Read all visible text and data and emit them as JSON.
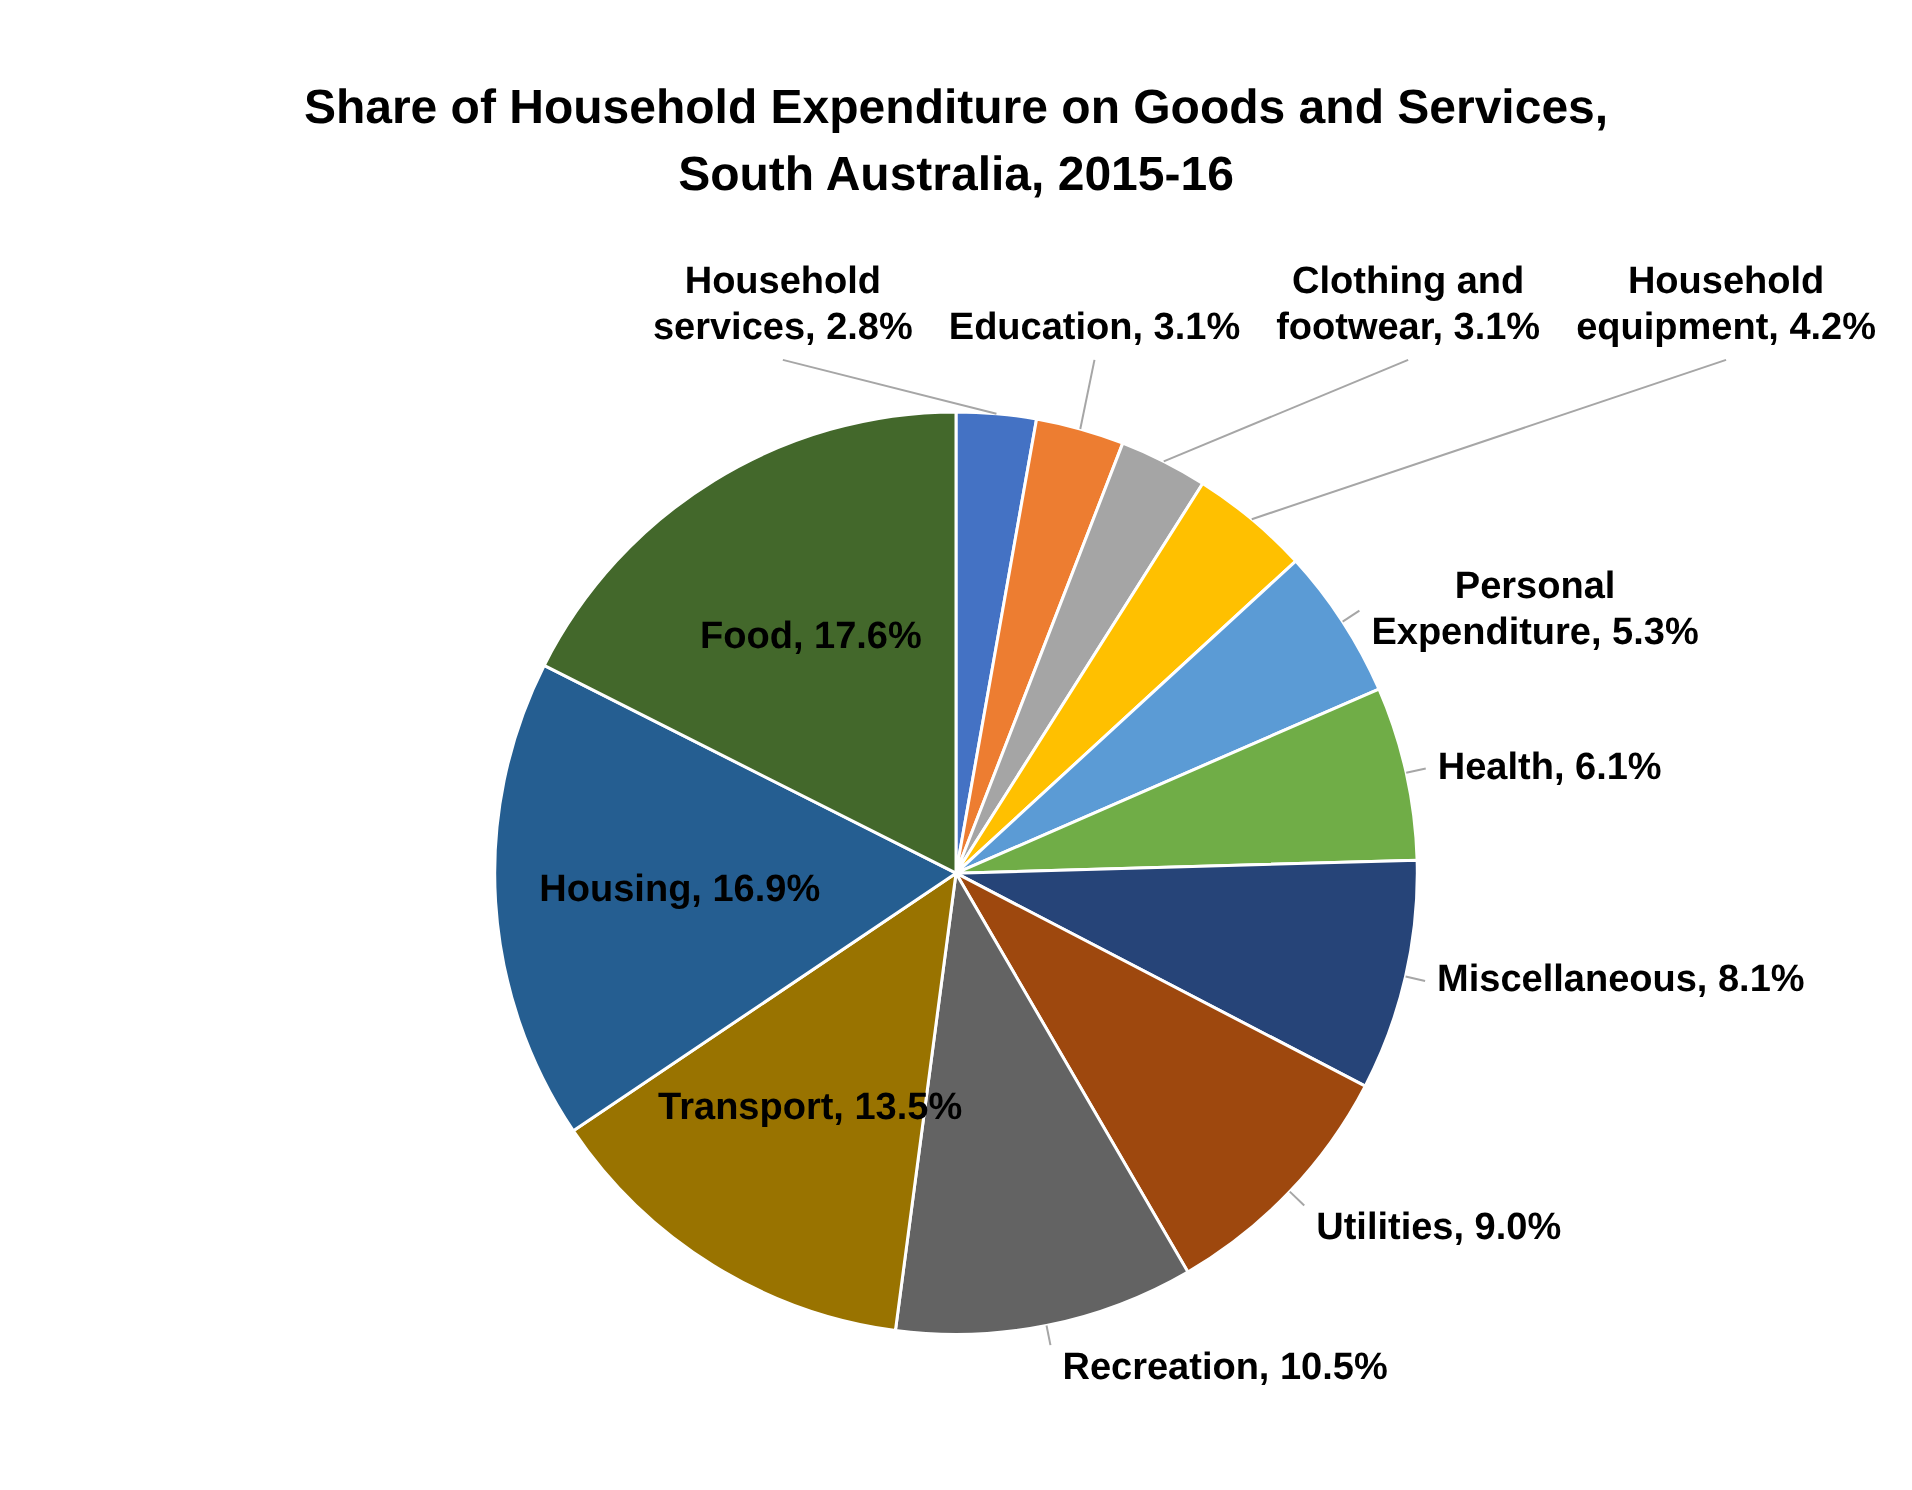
{
  "chart_data": {
    "type": "pie",
    "title": "Share of Household Expenditure on Goods and Services, South Australia, 2015-16",
    "categories": [
      "Household services",
      "Education",
      "Clothing and footwear",
      "Household equipment",
      "Personal Expenditure",
      "Health",
      "Miscellaneous",
      "Utilities",
      "Recreation",
      "Transport",
      "Housing",
      "Food"
    ],
    "values": [
      2.8,
      3.1,
      3.1,
      4.2,
      5.3,
      6.1,
      8.1,
      9.0,
      10.5,
      13.5,
      16.9,
      17.6
    ],
    "colors": [
      "#4472c4",
      "#ed7d31",
      "#a5a5a5",
      "#ffc000",
      "#5b9bd5",
      "#70ad47",
      "#264478",
      "#9e480e",
      "#636363",
      "#997300",
      "#255e91",
      "#43682b"
    ],
    "value_labels": [
      "2.8%",
      "3.1%",
      "3.1%",
      "4.2%",
      "5.3%",
      "6.1%",
      "8.1%",
      "9.0%",
      "10.5%",
      "13.5%",
      "16.9%",
      "17.6%"
    ]
  }
}
